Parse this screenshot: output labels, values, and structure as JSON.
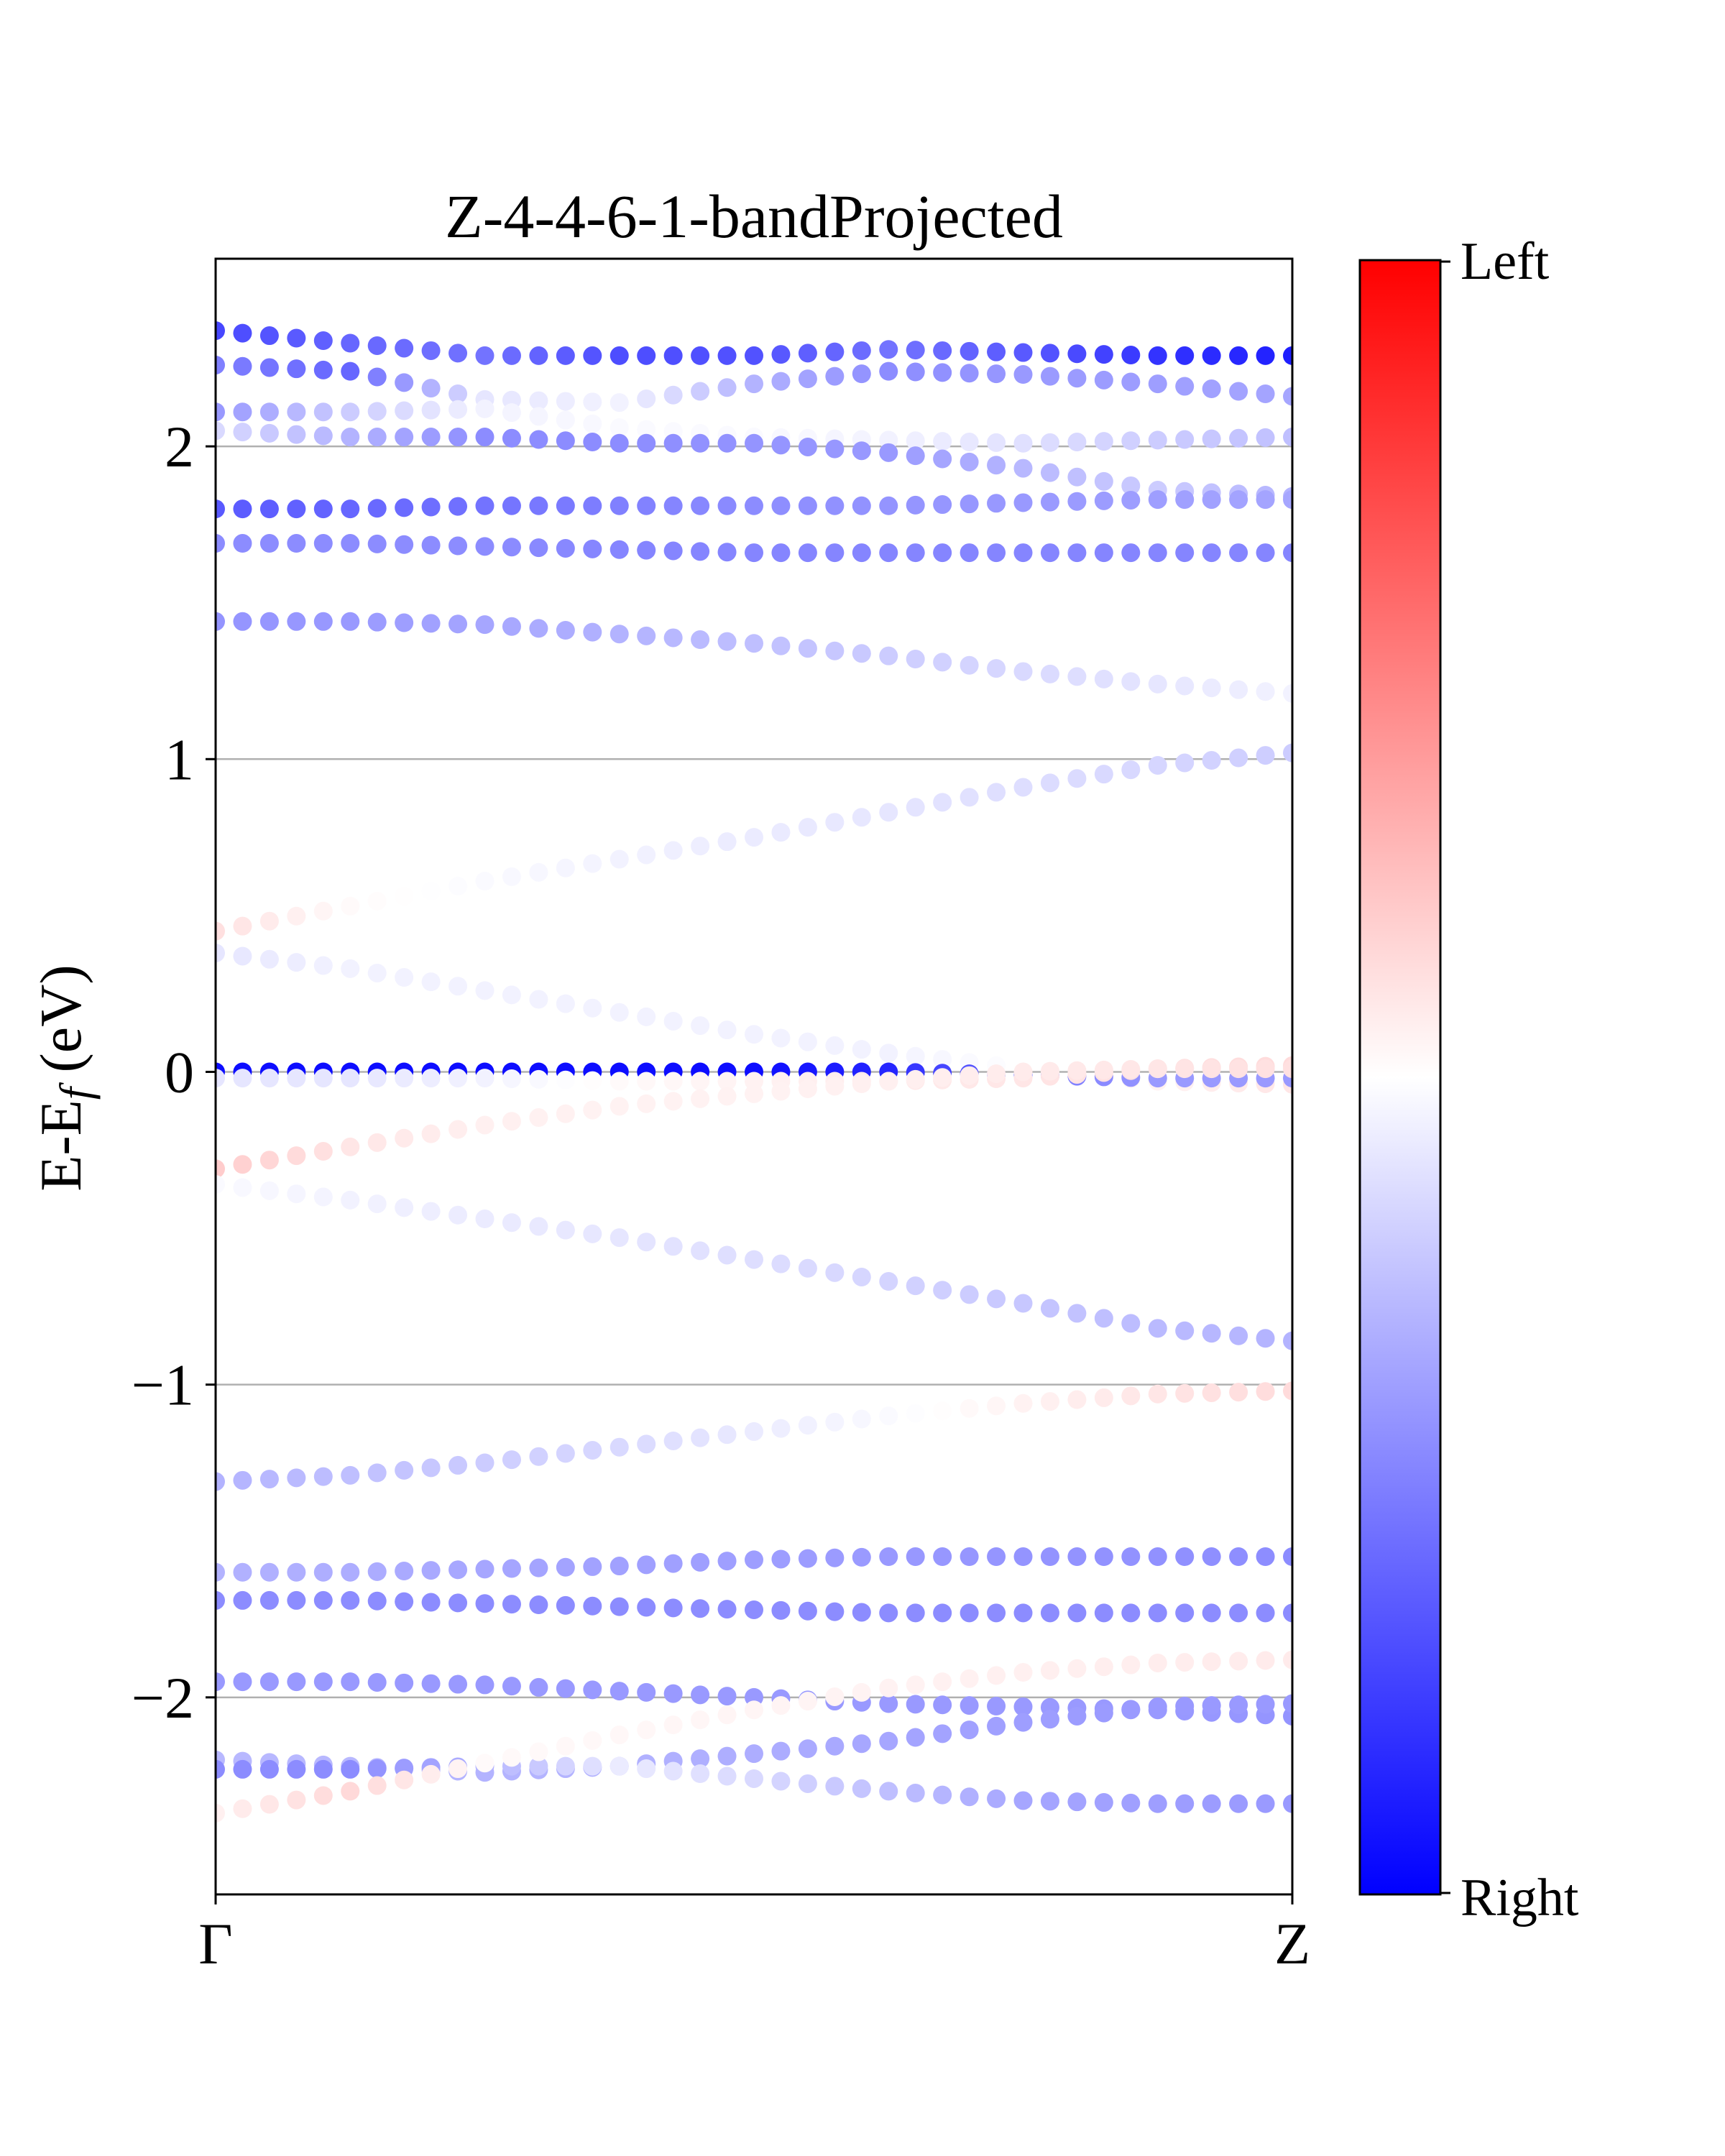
{
  "chart_data": {
    "type": "scatter",
    "title": "Z-4-4-6-1-bandProjected",
    "ylabel": "E-E",
    "ylabel_sub": "f",
    "ylabel_unit": " (eV)",
    "x_ticks": [
      "Γ",
      "Z"
    ],
    "y_ticks": [
      {
        "value": 2,
        "label": "2"
      },
      {
        "value": 1,
        "label": "1"
      },
      {
        "value": 0,
        "label": "0"
      },
      {
        "value": -1,
        "label": "−1"
      },
      {
        "value": -2,
        "label": "−2"
      }
    ],
    "ylim": [
      -2.63,
      2.6
    ],
    "xlim": [
      0,
      1
    ],
    "grid": "horizontal lines at integer energies",
    "colorbar": {
      "top_label": "Left",
      "bottom_label": "Right",
      "colors": [
        "#0000ff",
        "#ffffff",
        "#ff0000"
      ],
      "range": [
        -1,
        1
      ]
    },
    "series": [
      {
        "y": [
          2.37,
          2.33,
          2.29,
          2.29,
          2.29,
          2.31,
          2.3,
          2.29,
          2.29
        ],
        "w": [
          -0.72,
          -0.6,
          -0.55,
          -0.7,
          -0.68,
          -0.55,
          -0.65,
          -0.8,
          -0.88
        ]
      },
      {
        "y": [
          2.26,
          2.24,
          2.15,
          2.14,
          2.2,
          2.24,
          2.23,
          2.2,
          2.16
        ],
        "w": [
          -0.5,
          -0.6,
          -0.1,
          -0.05,
          -0.3,
          -0.45,
          -0.4,
          -0.38,
          -0.35
        ]
      },
      {
        "y": [
          2.11,
          2.11,
          2.12,
          2.06,
          2.03,
          2.02,
          2.01,
          2.02,
          2.03
        ],
        "w": [
          -0.4,
          -0.2,
          -0.05,
          -0.02,
          -0.02,
          -0.05,
          -0.12,
          -0.2,
          -0.25
        ]
      },
      {
        "y": [
          2.05,
          2.03,
          2.03,
          2.01,
          2.01,
          1.98,
          1.93,
          1.86,
          1.84
        ],
        "w": [
          -0.15,
          -0.3,
          -0.45,
          -0.45,
          -0.42,
          -0.4,
          -0.28,
          -0.2,
          -0.3
        ]
      },
      {
        "y": [
          1.8,
          1.8,
          1.81,
          1.81,
          1.81,
          1.81,
          1.82,
          1.83,
          1.83
        ],
        "w": [
          -0.65,
          -0.6,
          -0.55,
          -0.5,
          -0.45,
          -0.42,
          -0.4,
          -0.38,
          -0.35
        ]
      },
      {
        "y": [
          1.69,
          1.69,
          1.68,
          1.67,
          1.66,
          1.66,
          1.66,
          1.66,
          1.66
        ],
        "w": [
          -0.45,
          -0.45,
          -0.45,
          -0.48,
          -0.48,
          -0.48,
          -0.48,
          -0.48,
          -0.48
        ]
      },
      {
        "y": [
          1.44,
          1.44,
          1.43,
          1.4,
          1.37,
          1.33,
          1.28,
          1.24,
          1.21
        ],
        "w": [
          -0.42,
          -0.4,
          -0.35,
          -0.3,
          -0.25,
          -0.2,
          -0.15,
          -0.1,
          -0.05
        ]
      },
      {
        "y": [
          0.45,
          0.53,
          0.61,
          0.68,
          0.75,
          0.83,
          0.91,
          0.98,
          1.02
        ],
        "w": [
          0.12,
          0.02,
          -0.02,
          -0.05,
          -0.08,
          -0.1,
          -0.13,
          -0.16,
          -0.2
        ]
      },
      {
        "y": [
          0.38,
          0.33,
          0.26,
          0.19,
          0.12,
          0.06,
          0.01,
          -0.03,
          -0.04
        ],
        "w": [
          -0.1,
          -0.05,
          -0.05,
          -0.05,
          -0.05,
          -0.05,
          0.0,
          0.05,
          0.1
        ]
      },
      {
        "y": [
          0.0,
          0.0,
          0.0,
          0.0,
          0.0,
          0.0,
          -0.01,
          -0.02,
          -0.02
        ],
        "w": [
          -0.95,
          -0.95,
          -0.95,
          -0.95,
          -0.95,
          -0.85,
          -0.55,
          -0.4,
          -0.4
        ]
      },
      {
        "y": [
          -0.02,
          -0.02,
          -0.02,
          -0.03,
          -0.03,
          -0.03,
          -0.02,
          0.01,
          0.02
        ],
        "w": [
          -0.1,
          -0.1,
          -0.05,
          0.02,
          0.05,
          0.08,
          0.1,
          0.12,
          0.14
        ]
      },
      {
        "y": [
          -0.31,
          -0.24,
          -0.17,
          -0.11,
          -0.07,
          -0.03,
          0.0,
          0.01,
          0.01
        ],
        "w": [
          0.2,
          0.1,
          0.06,
          0.05,
          0.05,
          0.06,
          0.08,
          0.1,
          0.12
        ]
      },
      {
        "y": [
          -0.36,
          -0.41,
          -0.47,
          -0.53,
          -0.6,
          -0.67,
          -0.74,
          -0.82,
          -0.86
        ],
        "w": [
          -0.02,
          -0.05,
          -0.08,
          -0.1,
          -0.13,
          -0.17,
          -0.22,
          -0.27,
          -0.3
        ]
      },
      {
        "y": [
          -1.31,
          -1.29,
          -1.25,
          -1.2,
          -1.15,
          -1.1,
          -1.06,
          -1.03,
          -1.02
        ],
        "w": [
          -0.3,
          -0.25,
          -0.2,
          -0.15,
          -0.08,
          -0.02,
          0.05,
          0.1,
          0.14
        ]
      },
      {
        "y": [
          -1.6,
          -1.6,
          -1.59,
          -1.58,
          -1.56,
          -1.55,
          -1.55,
          -1.55,
          -1.55
        ],
        "w": [
          -0.3,
          -0.32,
          -0.35,
          -0.37,
          -0.38,
          -0.4,
          -0.42,
          -0.43,
          -0.45
        ]
      },
      {
        "y": [
          -1.69,
          -1.69,
          -1.7,
          -1.71,
          -1.72,
          -1.73,
          -1.73,
          -1.73,
          -1.73
        ],
        "w": [
          -0.45,
          -0.45,
          -0.45,
          -0.45,
          -0.45,
          -0.45,
          -0.45,
          -0.45,
          -0.45
        ]
      },
      {
        "y": [
          -1.95,
          -1.95,
          -1.96,
          -1.98,
          -2.0,
          -2.02,
          -2.03,
          -2.04,
          -2.06
        ],
        "w": [
          -0.4,
          -0.4,
          -0.4,
          -0.4,
          -0.4,
          -0.4,
          -0.4,
          -0.4,
          -0.42
        ]
      },
      {
        "y": [
          -2.2,
          -2.22,
          -2.24,
          -2.22,
          -2.18,
          -2.14,
          -2.08,
          -2.03,
          -2.02
        ],
        "w": [
          -0.28,
          -0.28,
          -0.3,
          -0.3,
          -0.32,
          -0.35,
          -0.38,
          -0.4,
          -0.4
        ]
      },
      {
        "y": [
          -2.23,
          -2.23,
          -2.22,
          -2.22,
          -2.26,
          -2.3,
          -2.33,
          -2.34,
          -2.34
        ],
        "w": [
          -0.45,
          -0.45,
          -0.3,
          -0.08,
          -0.15,
          -0.25,
          -0.35,
          -0.38,
          -0.4
        ]
      },
      {
        "y": [
          -2.37,
          -2.3,
          -2.21,
          -2.12,
          -2.04,
          -1.97,
          -1.92,
          -1.89,
          -1.88
        ],
        "w": [
          0.06,
          0.15,
          0.02,
          0.03,
          0.04,
          0.05,
          0.06,
          0.07,
          0.08
        ]
      }
    ]
  }
}
